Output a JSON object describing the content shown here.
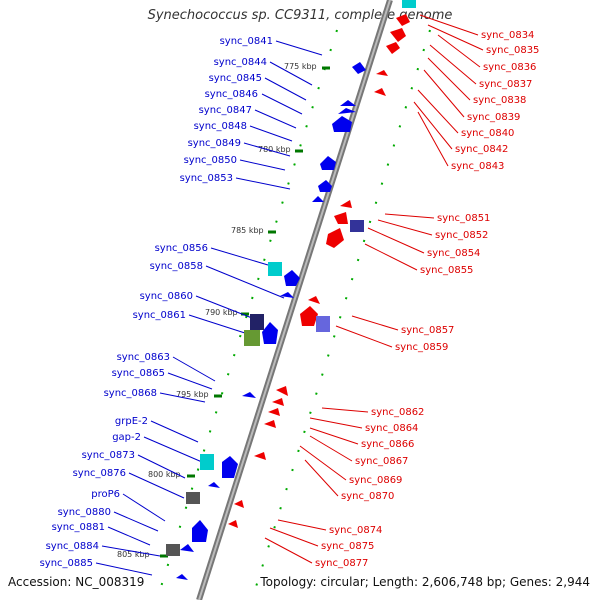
{
  "title": "Synechococcus sp. CC9311, complete genome",
  "accession": "Accession: NC_008319",
  "topology": "Topology: circular; Length: 2,606,748 bp; Genes: 2,944",
  "colors": {
    "backbone": "#888888",
    "left_label": "#0000cc",
    "right_label": "#dd0000",
    "tick": "#007700",
    "forward_gene": "#0000ee",
    "reverse_gene": "#ee0000",
    "rna_gene": "#00cccc",
    "pseudo_gene": "#555555"
  },
  "ticks": [
    "775 kbp",
    "780 kbp",
    "785 kbp",
    "790 kbp",
    "795 kbp",
    "800 kbp",
    "805 kbp"
  ],
  "left_labels": [
    "sync_0841",
    "sync_0844",
    "sync_0845",
    "sync_0846",
    "sync_0847",
    "sync_0848",
    "sync_0849",
    "sync_0850",
    "sync_0853",
    "sync_0856",
    "sync_0858",
    "sync_0860",
    "sync_0861",
    "sync_0863",
    "sync_0865",
    "sync_0868",
    "grpE-2",
    "gap-2",
    "sync_0873",
    "sync_0876",
    "proP6",
    "sync_0880",
    "sync_0881",
    "sync_0884",
    "sync_0885"
  ],
  "right_labels": [
    "sync_0834",
    "sync_0835",
    "sync_0836",
    "sync_0837",
    "sync_0838",
    "sync_0839",
    "sync_0840",
    "sync_0842",
    "sync_0843",
    "sync_0851",
    "sync_0852",
    "sync_0854",
    "sync_0855",
    "sync_0857",
    "sync_0859",
    "sync_0862",
    "sync_0864",
    "sync_0866",
    "sync_0867",
    "sync_0869",
    "sync_0870",
    "sync_0874",
    "sync_0875",
    "sync_0877"
  ]
}
